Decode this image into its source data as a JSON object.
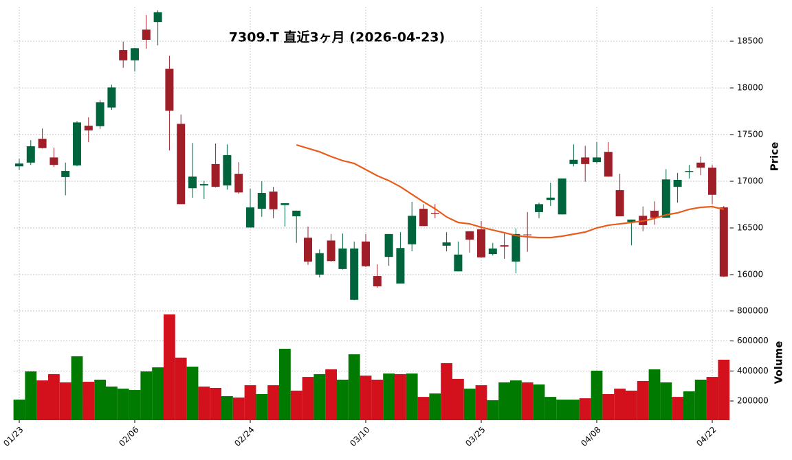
{
  "chart_data": {
    "type": "candlestick",
    "title": "7309.T  直近3ヶ月  (2026-04-23)",
    "y_label": "Price",
    "categories": [
      "01/23",
      null,
      null,
      null,
      null,
      null,
      null,
      null,
      null,
      null,
      "02/06",
      null,
      null,
      null,
      null,
      null,
      null,
      null,
      null,
      null,
      "02/24",
      null,
      null,
      null,
      null,
      null,
      null,
      null,
      null,
      null,
      "03/10",
      null,
      null,
      null,
      null,
      null,
      null,
      null,
      null,
      null,
      "03/25",
      null,
      null,
      null,
      null,
      null,
      null,
      null,
      null,
      null,
      "04/08",
      null,
      null,
      null,
      null,
      null,
      null,
      null,
      null,
      null,
      "04/22",
      null
    ],
    "open": [
      17160,
      17200,
      17455,
      17255,
      17045,
      17170,
      17595,
      17590,
      17790,
      18405,
      18295,
      18625,
      18705,
      18205,
      17615,
      16925,
      16955,
      17185,
      16955,
      17080,
      16505,
      16705,
      16890,
      16745,
      16625,
      16395,
      16000,
      16365,
      16060,
      15730,
      16355,
      15985,
      16190,
      15905,
      16325,
      16705,
      16660,
      16310,
      16035,
      16465,
      16485,
      16220,
      16315,
      16140,
      16430,
      16670,
      16800,
      16645,
      17185,
      17255,
      17205,
      17315,
      16905,
      16565,
      16630,
      16685,
      16610,
      16940,
      17100,
      17200,
      17145,
      16720
    ],
    "high": [
      17240,
      17440,
      17565,
      17360,
      17200,
      17645,
      17685,
      17870,
      18035,
      18495,
      18430,
      18780,
      18830,
      18345,
      17715,
      17410,
      17005,
      17405,
      17395,
      17205,
      16920,
      17000,
      16940,
      16765,
      16685,
      16515,
      16270,
      16435,
      16440,
      16355,
      16435,
      16110,
      16435,
      16455,
      16780,
      16755,
      16755,
      16455,
      16355,
      16465,
      16575,
      16340,
      16440,
      16495,
      16670,
      16770,
      16985,
      17030,
      17395,
      17380,
      17420,
      17420,
      17080,
      16590,
      16730,
      16785,
      17130,
      17090,
      17175,
      17265,
      17175,
      16735
    ],
    "low": [
      17120,
      17175,
      17350,
      17155,
      16850,
      17160,
      17420,
      17560,
      17765,
      18215,
      18175,
      18420,
      18455,
      17330,
      16755,
      16825,
      16810,
      16935,
      16910,
      16865,
      16505,
      16620,
      16605,
      16515,
      16340,
      16105,
      15970,
      16140,
      16055,
      15725,
      16080,
      15860,
      16095,
      15905,
      16250,
      16520,
      16605,
      16250,
      16035,
      16235,
      16180,
      16205,
      16170,
      16015,
      16245,
      16605,
      16735,
      16645,
      17160,
      16995,
      17190,
      17050,
      16625,
      16315,
      16465,
      16535,
      16610,
      16770,
      17030,
      17065,
      16755,
      15975
    ],
    "close": [
      17190,
      17375,
      17355,
      17175,
      17110,
      17630,
      17545,
      17845,
      18005,
      18295,
      18425,
      18515,
      18810,
      17755,
      16755,
      17050,
      16970,
      16940,
      17280,
      16880,
      16720,
      16875,
      16700,
      16765,
      16685,
      16140,
      16230,
      16145,
      16280,
      16280,
      16090,
      15875,
      16435,
      16285,
      16630,
      16520,
      16650,
      16345,
      16215,
      16375,
      16185,
      16280,
      16300,
      16435,
      16425,
      16755,
      16825,
      17030,
      17230,
      17185,
      17255,
      17050,
      16625,
      16590,
      16530,
      16610,
      17020,
      17015,
      17110,
      17145,
      16855,
      15980
    ],
    "up_color": "#00643c",
    "down_color": "#a01e28",
    "ylim": [
      15706,
      18868
    ],
    "yticks": [
      16000,
      16500,
      17000,
      17500,
      18000,
      18500
    ],
    "grid": true,
    "moving_average": {
      "color": "#ea5b1a",
      "values": [
        null,
        null,
        null,
        null,
        null,
        null,
        null,
        null,
        null,
        null,
        null,
        null,
        null,
        null,
        null,
        null,
        null,
        null,
        null,
        null,
        null,
        null,
        null,
        null,
        17390,
        17353,
        17316,
        17265,
        17221,
        17191,
        17125,
        17059,
        17007,
        16941,
        16860,
        16779,
        16706,
        16618,
        16559,
        16544,
        16507,
        16478,
        16449,
        16419,
        16404,
        16397,
        16397,
        16412,
        16434,
        16456,
        16500,
        16529,
        16544,
        16559,
        16574,
        16603,
        16640,
        16662,
        16699,
        16721,
        16728,
        16699
      ]
    },
    "volume": {
      "label": "Volume",
      "up_color": "#007a00",
      "down_color": "#d2111d",
      "values": [
        209000,
        397000,
        337000,
        379000,
        324000,
        498000,
        328000,
        342000,
        296000,
        282000,
        273000,
        397000,
        424000,
        777000,
        489000,
        429000,
        296000,
        287000,
        232000,
        223000,
        305000,
        246000,
        305000,
        548000,
        269000,
        360000,
        379000,
        411000,
        342000,
        511000,
        369000,
        342000,
        383000,
        379000,
        383000,
        227000,
        250000,
        452000,
        347000,
        282000,
        305000,
        205000,
        324000,
        337000,
        324000,
        310000,
        227000,
        209000,
        209000,
        218000,
        402000,
        246000,
        282000,
        269000,
        333000,
        411000,
        324000,
        227000,
        264000,
        342000,
        360000,
        475000
      ],
      "ylim": [
        72000,
        827000
      ],
      "yticks": [
        200000,
        400000,
        600000,
        800000
      ]
    }
  }
}
